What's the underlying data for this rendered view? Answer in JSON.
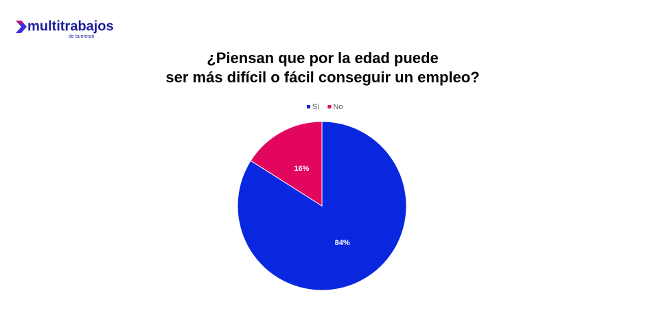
{
  "header": {
    "logo": "multitrabajos",
    "logo_sub": "de bumeran"
  },
  "chart_data": {
    "type": "pie",
    "title": [
      "¿Piensan que por la edad puede",
      "ser más difícil o fácil conseguir un empleo?"
    ],
    "categories": [
      "Sí",
      "No"
    ],
    "values": [
      84,
      16
    ],
    "value_labels": [
      "84%",
      "16%"
    ],
    "colors": [
      "#0a27e0",
      "#e3065f"
    ],
    "legend": "top"
  }
}
